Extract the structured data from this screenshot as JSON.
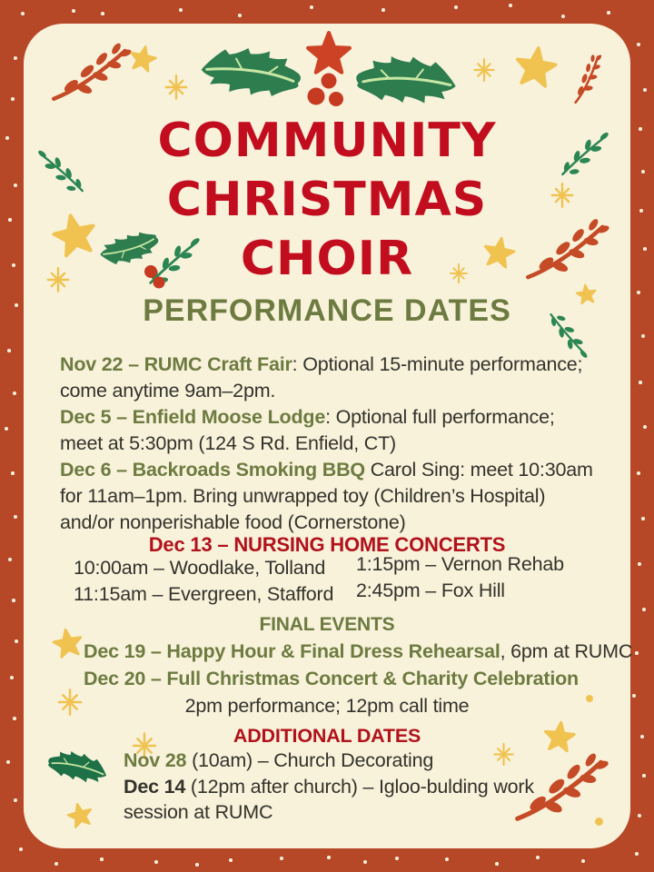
{
  "title": {
    "line1": "COMMUNITY",
    "line2": "CHRISTMAS",
    "line3": "CHOIR",
    "subtitle": "PERFORMANCE DATES"
  },
  "main_events": {
    "lines": [
      {
        "bold": "Nov 22 – RUMC Craft Fair",
        "rest": ": Optional 15-minute performance;"
      },
      {
        "bold": "",
        "rest": "come anytime 9am–2pm."
      },
      {
        "bold": "Dec 5 – Enfield Moose Lodge",
        "rest": ": Optional full performance;"
      },
      {
        "bold": "",
        "rest": "meet at 5:30pm (124 S Rd. Enfield, CT)"
      },
      {
        "bold": "Dec 6 – Backroads Smoking BBQ",
        "rest": " Carol Sing: meet 10:30am"
      },
      {
        "bold": "",
        "rest": "for 11am–1pm. Bring unwrapped toy (Children’s Hospital)"
      },
      {
        "bold": "",
        "rest": "and/or nonperishable food (Cornerstone)"
      }
    ]
  },
  "nursing": {
    "heading": "Dec 13 – NURSING HOME CONCERTS",
    "left_column": [
      "10:00am – Woodlake, Tolland",
      "11:15am – Evergreen, Stafford"
    ],
    "right_column": [
      "1:15pm – Vernon Rehab",
      "2:45pm – Fox Hill"
    ]
  },
  "final_events": {
    "heading": "FINAL EVENTS",
    "line1_bold": "Dec 19 – Happy Hour & Final Dress Rehearsal",
    "line1_rest": ", 6pm at RUMC",
    "line2_bold": "Dec 20 – Full Christmas Concert & Charity Celebration",
    "line2_rest": "",
    "line3": "2pm performance; 12pm call time"
  },
  "additional_dates": {
    "heading": "ADDITIONAL DATES",
    "line1_bold": "Nov 28",
    "line1_rest": " (10am) – Church Decorating",
    "line2_bold": "Dec 14",
    "line2_rest": " (12pm after church) – Igloo-bulding work",
    "line3": "session at RUMC"
  },
  "colors": {
    "border_red": "#b64827",
    "card_cream": "#f8f2db",
    "title_red": "#c20d1f",
    "heading_crimson": "#b1121b",
    "olive_green": "#6d7b40",
    "body_dark": "#33322b",
    "holly_green": "#2e7d4f",
    "holly_dark_green": "#1e7046",
    "leaf_green": "#2c8653",
    "branch_red": "#c54a26",
    "berry_red": "#c63a22",
    "star_yellow": "#f0c351",
    "vein_green": "#c9e7a4",
    "snow_white": "#f7f1dd"
  },
  "decorations": [
    "holly-garland-icon",
    "holly-leaf-icon",
    "holly-sprig-icon",
    "berry-branch-icon",
    "leaf-branch-icon",
    "star-icon",
    "sparkle-icon",
    "snow-dots",
    "berry-icon"
  ]
}
